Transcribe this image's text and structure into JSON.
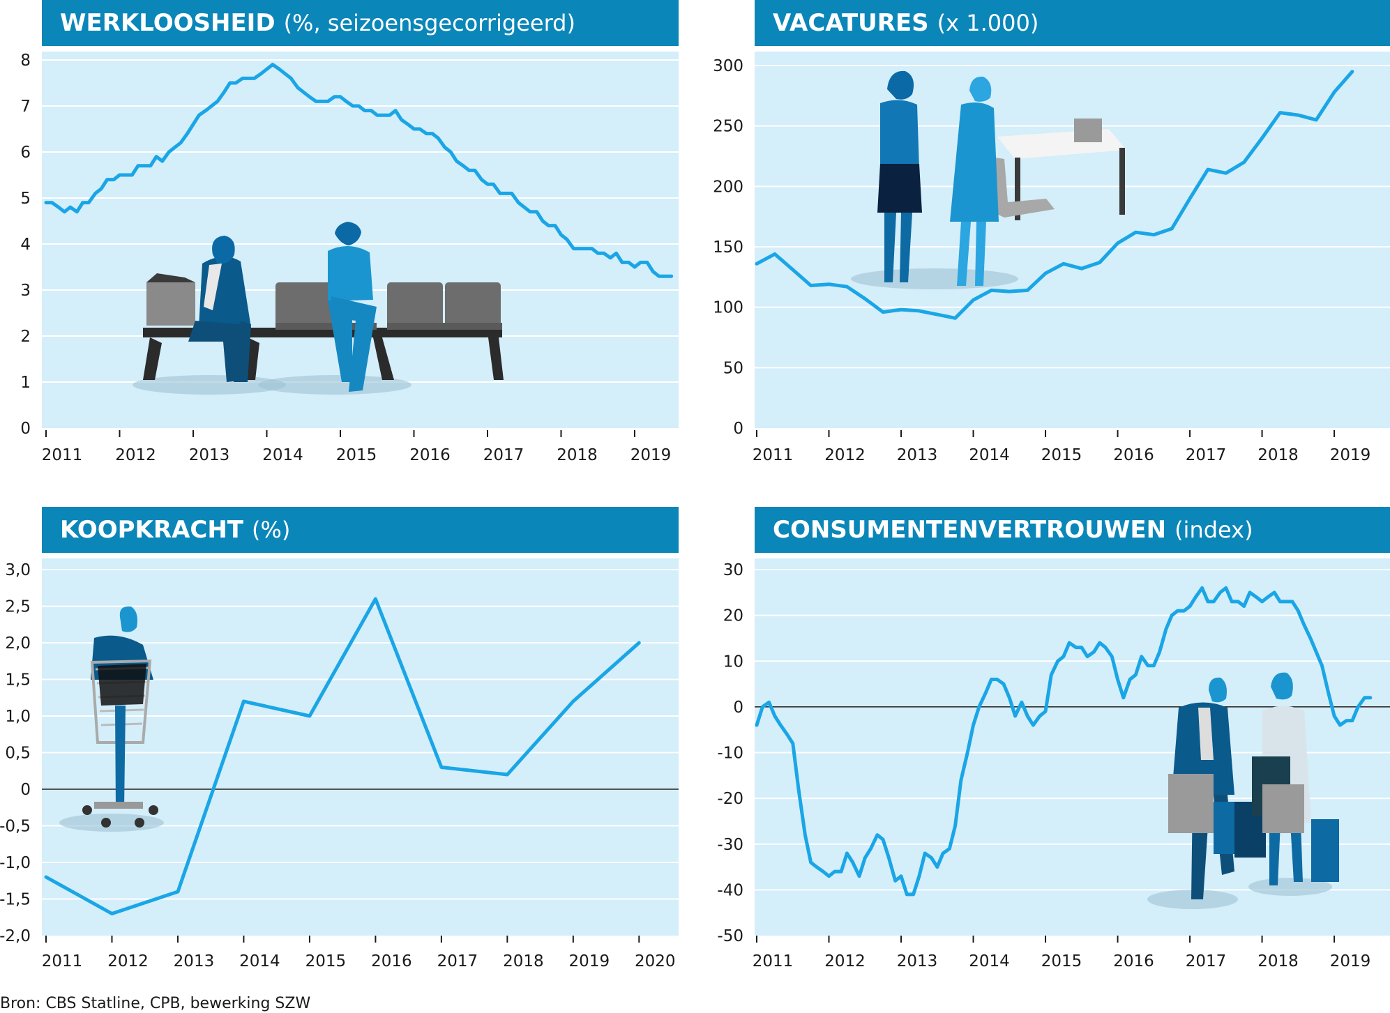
{
  "colors": {
    "header": "#0b86b9",
    "plot_bg": "#d4eefa",
    "line": "#1aa6e6",
    "grid": "#ffffff",
    "zero_line": "#1a1a1a"
  },
  "source": "Bron: CBS Statline, CPB, bewerking SZW",
  "chart_data": [
    {
      "type": "line",
      "title": "WERKLOOSHEID",
      "subtitle": "(%, seizoensgecorrigeerd)",
      "ylim": [
        0,
        8
      ],
      "yticks": [
        0,
        1,
        2,
        3,
        4,
        5,
        6,
        7,
        8
      ],
      "ytick_labels": [
        "0",
        "1",
        "2",
        "3",
        "4",
        "5",
        "6",
        "7",
        "8"
      ],
      "x_range": [
        2011,
        2019.55
      ],
      "x_tick_labels": [
        "2011",
        "2012",
        "2013",
        "2014",
        "2015",
        "2016",
        "2017",
        "2018",
        "2019"
      ],
      "illustration": "people-waiting-on-bench",
      "series": [
        {
          "x": [
            2011.0,
            2011.08,
            2011.17,
            2011.25,
            2011.33,
            2011.42,
            2011.5,
            2011.58,
            2011.67,
            2011.75,
            2011.83,
            2011.92,
            2012.0,
            2012.08,
            2012.17,
            2012.25,
            2012.33,
            2012.42,
            2012.5,
            2012.58,
            2012.67,
            2012.75,
            2012.83,
            2012.92,
            2013.0,
            2013.08,
            2013.17,
            2013.25,
            2013.33,
            2013.42,
            2013.5,
            2013.58,
            2013.67,
            2013.75,
            2013.83,
            2013.92,
            2014.0,
            2014.08,
            2014.17,
            2014.25,
            2014.33,
            2014.42,
            2014.5,
            2014.58,
            2014.67,
            2014.75,
            2014.83,
            2014.92,
            2015.0,
            2015.08,
            2015.17,
            2015.25,
            2015.33,
            2015.42,
            2015.5,
            2015.58,
            2015.67,
            2015.75,
            2015.83,
            2015.92,
            2016.0,
            2016.08,
            2016.17,
            2016.25,
            2016.33,
            2016.42,
            2016.5,
            2016.58,
            2016.67,
            2016.75,
            2016.83,
            2016.92,
            2017.0,
            2017.08,
            2017.17,
            2017.25,
            2017.33,
            2017.42,
            2017.5,
            2017.58,
            2017.67,
            2017.75,
            2017.83,
            2017.92,
            2018.0,
            2018.08,
            2018.17,
            2018.25,
            2018.33,
            2018.42,
            2018.5,
            2018.58,
            2018.67,
            2018.75,
            2018.83,
            2018.92,
            2019.0,
            2019.08,
            2019.17,
            2019.25,
            2019.33,
            2019.42,
            2019.5
          ],
          "values": [
            4.9,
            4.9,
            4.8,
            4.7,
            4.8,
            4.7,
            4.9,
            4.9,
            5.1,
            5.2,
            5.4,
            5.4,
            5.5,
            5.5,
            5.5,
            5.7,
            5.7,
            5.7,
            5.9,
            5.8,
            6.0,
            6.1,
            6.2,
            6.4,
            6.6,
            6.8,
            6.9,
            7.0,
            7.1,
            7.3,
            7.5,
            7.5,
            7.6,
            7.6,
            7.6,
            7.7,
            7.8,
            7.9,
            7.8,
            7.7,
            7.6,
            7.4,
            7.3,
            7.2,
            7.1,
            7.1,
            7.1,
            7.2,
            7.2,
            7.1,
            7.0,
            7.0,
            6.9,
            6.9,
            6.8,
            6.8,
            6.8,
            6.9,
            6.7,
            6.6,
            6.5,
            6.5,
            6.4,
            6.4,
            6.3,
            6.1,
            6.0,
            5.8,
            5.7,
            5.6,
            5.6,
            5.4,
            5.3,
            5.3,
            5.1,
            5.1,
            5.1,
            4.9,
            4.8,
            4.7,
            4.7,
            4.5,
            4.4,
            4.4,
            4.2,
            4.1,
            3.9,
            3.9,
            3.9,
            3.9,
            3.8,
            3.8,
            3.7,
            3.8,
            3.6,
            3.6,
            3.5,
            3.6,
            3.6,
            3.4,
            3.3,
            3.3,
            3.3
          ]
        }
      ]
    },
    {
      "type": "line",
      "title": "VACATURES",
      "subtitle": "(x 1.000)",
      "ylim": [
        0,
        300
      ],
      "yticks": [
        0,
        50,
        100,
        150,
        200,
        250,
        300
      ],
      "ytick_labels": [
        "0",
        "50",
        "100",
        "150",
        "200",
        "250",
        "300"
      ],
      "x_range": [
        2011,
        2019.55
      ],
      "x_tick_labels": [
        "2011",
        "2012",
        "2013",
        "2014",
        "2015",
        "2016",
        "2017",
        "2018",
        "2019"
      ],
      "illustration": "two-women-handshake-desk",
      "series": [
        {
          "x": [
            2011.0,
            2011.25,
            2011.5,
            2011.75,
            2012.0,
            2012.25,
            2012.5,
            2012.75,
            2013.0,
            2013.25,
            2013.5,
            2013.75,
            2014.0,
            2014.25,
            2014.5,
            2014.75,
            2015.0,
            2015.25,
            2015.5,
            2015.75,
            2016.0,
            2016.25,
            2016.5,
            2016.75,
            2017.0,
            2017.25,
            2017.5,
            2017.75,
            2018.0,
            2018.25,
            2018.5,
            2018.75,
            2019.0,
            2019.25
          ],
          "values": [
            136,
            144,
            131,
            118,
            119,
            117,
            107,
            96,
            98,
            97,
            94,
            91,
            106,
            114,
            113,
            114,
            128,
            136,
            132,
            137,
            153,
            162,
            160,
            165,
            190,
            214,
            211,
            220,
            240,
            261,
            259,
            255,
            278,
            295
          ]
        }
      ]
    },
    {
      "type": "line",
      "title": "KOOPKRACHT",
      "subtitle": "(%)",
      "ylim": [
        -2.0,
        3.0
      ],
      "yticks": [
        -2.0,
        -1.5,
        -1.0,
        -0.5,
        0,
        0.5,
        1.0,
        1.5,
        2.0,
        2.5,
        3.0
      ],
      "ytick_labels": [
        "-2,0",
        "-1,5",
        "-1,0",
        "-0,5",
        "0",
        "0,5",
        "1,0",
        "1,5",
        "2,0",
        "2,5",
        "3,0"
      ],
      "zero_line": true,
      "x_range": [
        2011,
        2020.6
      ],
      "x_tick_labels": [
        "2011",
        "2012",
        "2013",
        "2014",
        "2015",
        "2016",
        "2017",
        "2018",
        "2019",
        "2020"
      ],
      "illustration": "man-with-shopping-cart",
      "series": [
        {
          "x": [
            2011,
            2012,
            2013,
            2014,
            2015,
            2016,
            2017,
            2018,
            2019,
            2020
          ],
          "values": [
            -1.2,
            -1.7,
            -1.4,
            1.2,
            1.0,
            2.6,
            0.3,
            0.2,
            1.2,
            2.0
          ]
        }
      ]
    },
    {
      "type": "line",
      "title": "CONSUMENTENVERTROUWEN",
      "subtitle": "(index)",
      "ylim": [
        -50,
        30
      ],
      "yticks": [
        -50,
        -40,
        -30,
        -20,
        -10,
        0,
        10,
        20,
        30
      ],
      "ytick_labels": [
        "-50",
        "-40",
        "-30",
        "-20",
        "-10",
        "0",
        "10",
        "20",
        "30"
      ],
      "zero_line": true,
      "x_range": [
        2011,
        2019.55
      ],
      "x_tick_labels": [
        "2011",
        "2012",
        "2013",
        "2014",
        "2015",
        "2016",
        "2017",
        "2018",
        "2019"
      ],
      "illustration": "couple-with-shopping-bags",
      "series": [
        {
          "x": [
            2011.0,
            2011.08,
            2011.17,
            2011.25,
            2011.33,
            2011.42,
            2011.5,
            2011.58,
            2011.67,
            2011.75,
            2011.83,
            2011.92,
            2012.0,
            2012.08,
            2012.17,
            2012.25,
            2012.33,
            2012.42,
            2012.5,
            2012.58,
            2012.67,
            2012.75,
            2012.83,
            2012.92,
            2013.0,
            2013.08,
            2013.17,
            2013.25,
            2013.33,
            2013.42,
            2013.5,
            2013.58,
            2013.67,
            2013.75,
            2013.83,
            2013.92,
            2014.0,
            2014.08,
            2014.17,
            2014.25,
            2014.33,
            2014.42,
            2014.5,
            2014.58,
            2014.67,
            2014.75,
            2014.83,
            2014.92,
            2015.0,
            2015.08,
            2015.17,
            2015.25,
            2015.33,
            2015.42,
            2015.5,
            2015.58,
            2015.67,
            2015.75,
            2015.83,
            2015.92,
            2016.0,
            2016.08,
            2016.17,
            2016.25,
            2016.33,
            2016.42,
            2016.5,
            2016.58,
            2016.67,
            2016.75,
            2016.83,
            2016.92,
            2017.0,
            2017.08,
            2017.17,
            2017.25,
            2017.33,
            2017.42,
            2017.5,
            2017.58,
            2017.67,
            2017.75,
            2017.83,
            2017.92,
            2018.0,
            2018.08,
            2018.17,
            2018.25,
            2018.33,
            2018.42,
            2018.5,
            2018.58,
            2018.67,
            2018.75,
            2018.83,
            2018.92,
            2019.0,
            2019.08,
            2019.17,
            2019.25,
            2019.33,
            2019.42,
            2019.5
          ],
          "values": [
            -4,
            0,
            1,
            -2,
            -4,
            -6,
            -8,
            -18,
            -28,
            -34,
            -35,
            -36,
            -37,
            -36,
            -36,
            -32,
            -34,
            -37,
            -33,
            -31,
            -28,
            -29,
            -33,
            -38,
            -37,
            -41,
            -41,
            -37,
            -32,
            -33,
            -35,
            -32,
            -31,
            -26,
            -16,
            -10,
            -4,
            0,
            3,
            6,
            6,
            5,
            2,
            -2,
            1,
            -2,
            -4,
            -2,
            -1,
            7,
            10,
            11,
            14,
            13,
            13,
            11,
            12,
            14,
            13,
            11,
            6,
            2,
            6,
            7,
            11,
            9,
            9,
            12,
            17,
            20,
            21,
            21,
            22,
            24,
            26,
            23,
            23,
            25,
            26,
            23,
            23,
            22,
            25,
            24,
            23,
            24,
            25,
            23,
            23,
            23,
            21,
            18,
            15,
            12,
            9,
            3,
            -2,
            -4,
            -3,
            -3,
            0,
            2,
            2
          ]
        }
      ]
    }
  ]
}
